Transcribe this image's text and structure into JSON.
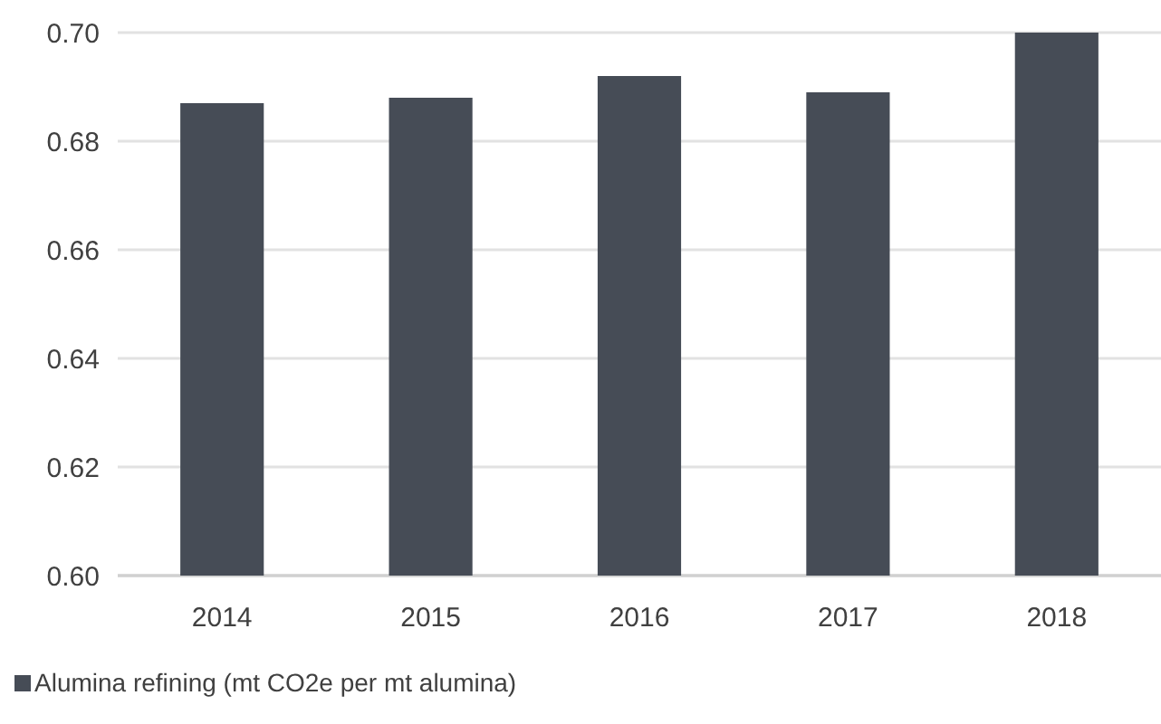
{
  "chart_data": {
    "type": "bar",
    "categories": [
      "2014",
      "2015",
      "2016",
      "2017",
      "2018"
    ],
    "series": [
      {
        "name": "Alumina refining (mt CO2e per mt alumina)",
        "color": "#464c56",
        "values": [
          0.687,
          0.688,
          0.692,
          0.689,
          0.7
        ]
      }
    ],
    "ylim": [
      0.6,
      0.7
    ],
    "yticks": [
      {
        "value": 0.6,
        "label": "0.60"
      },
      {
        "value": 0.62,
        "label": "0.62"
      },
      {
        "value": 0.64,
        "label": "0.64"
      },
      {
        "value": 0.66,
        "label": "0.66"
      },
      {
        "value": 0.68,
        "label": "0.68"
      },
      {
        "value": 0.7,
        "label": "0.70"
      }
    ],
    "grid": "y",
    "legend": "bottom left"
  }
}
